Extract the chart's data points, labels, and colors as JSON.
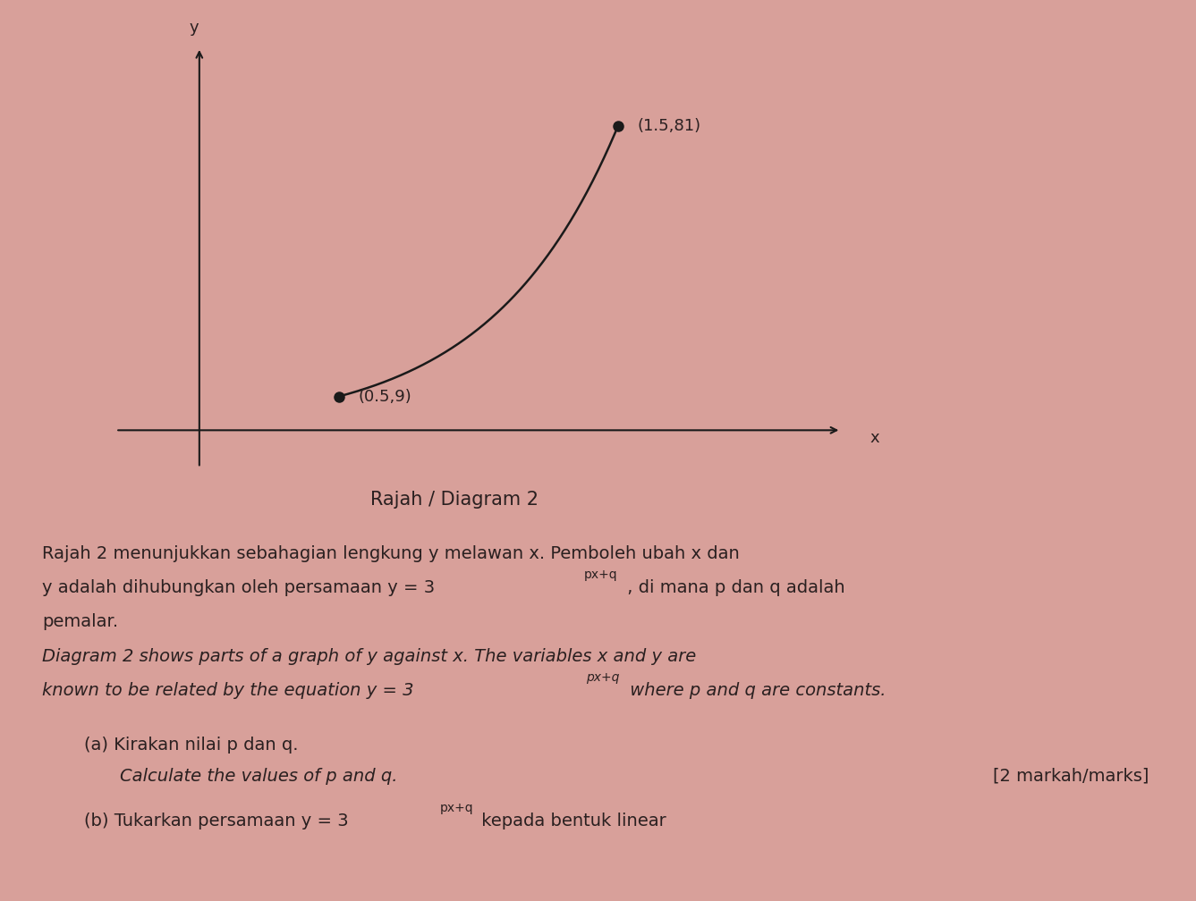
{
  "bg_color": "#d8a09a",
  "curve_color": "#1a1a1a",
  "dot_color": "#1a1a1a",
  "dot_size": 8,
  "axis_color": "#1a1a1a",
  "font_color": "#2a2020",
  "point1": [
    0.5,
    9
  ],
  "point2": [
    1.5,
    81
  ],
  "point1_label": "(0.5,9)",
  "point2_label": "(1.5,81)",
  "x_label": "x",
  "y_label": "y",
  "title": "Rajah / Diagram 2",
  "title_fontsize": 15,
  "label_fontsize": 13,
  "annotation_fontsize": 13,
  "body_fontsize": 14,
  "malay_line1": "Rajah 2 menunjukkan sebahagian lengkung y melawan x. Pemboleh ubah x dan",
  "malay_line2": "y adalah dihubungkan oleh persamaan y = 3",
  "malay_superscript": "px+q",
  "malay_line2_suffix": " , di mana p dan q adalah",
  "malay_line3": "pemalar.",
  "eng_line1": "Diagram 2 shows parts of a graph of y against x. The variables x and y are",
  "eng_line2": "known to be related by the equation y = 3",
  "eng_superscript": "px+q",
  "eng_line2_suffix": " where p and q are constants.",
  "qa_label": "(a) Kirakan nilai p dan q.",
  "qa_italic": "Calculate the values of p and q.",
  "qa_marks": "[2 markah/marks]",
  "qb_label": "(b) Tukarkan persamaan y = 3",
  "qb_superscript": "px+q",
  "qb_suffix": " kepada bentuk linear"
}
